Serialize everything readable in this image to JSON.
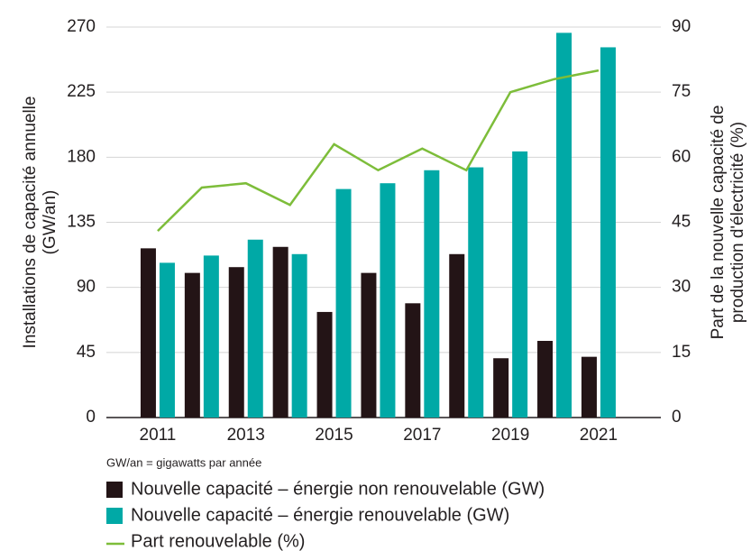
{
  "chart_data": {
    "type": "bar_line",
    "categories": [
      "2011",
      null,
      "2013",
      null,
      "2015",
      null,
      "2017",
      null,
      "2019",
      null,
      "2021"
    ],
    "series": [
      {
        "name": "Nouvelle capacité – énergie non renouvelable (GW)",
        "color": "#231416",
        "values": [
          117,
          100,
          104,
          118,
          73,
          100,
          79,
          113,
          41,
          53,
          42
        ]
      },
      {
        "name": "Nouvelle capacité – énergie renouvelable (GW)",
        "color": "#00a9a6",
        "values": [
          107,
          112,
          123,
          113,
          158,
          162,
          171,
          173,
          184,
          266,
          256
        ]
      },
      {
        "name": "Part renouvelable (%)",
        "color": "#7dbd3a",
        "axis": "y2",
        "type": "line",
        "values": [
          43,
          53,
          54,
          49,
          63,
          57,
          62,
          57,
          75,
          78,
          80
        ]
      }
    ],
    "ylabel": [
      "Installations de capacité annuelle",
      "(GW/an)"
    ],
    "y2label": [
      "Part de la nouvelle capacité de",
      "production d'électricité (%)"
    ],
    "note": "GW/an = gigawatts par année",
    "ylim": [
      0,
      270
    ],
    "yticks": [
      0,
      45,
      90,
      135,
      180,
      225,
      270
    ],
    "y2lim": [
      0,
      90
    ],
    "y2ticks": [
      0,
      15,
      30,
      45,
      60,
      75,
      90
    ],
    "grid": true,
    "legend": "bottom"
  }
}
